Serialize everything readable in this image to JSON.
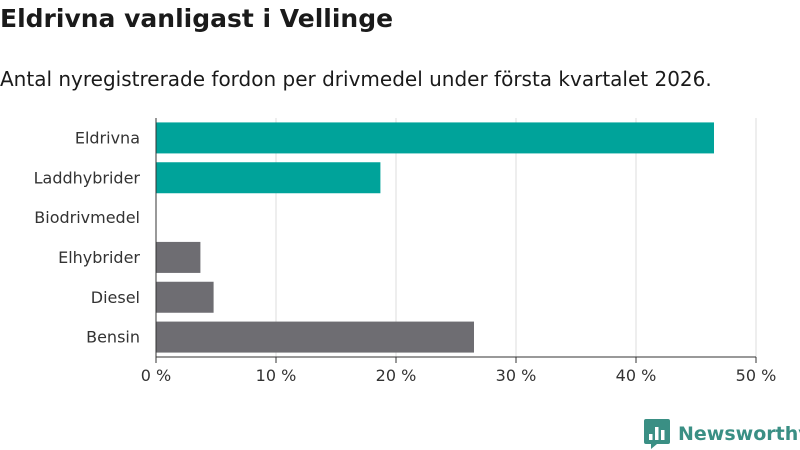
{
  "title": "Eldrivna vanligast i Vellinge",
  "subtitle": "Antal nyregistrerade fordon per drivmedel under första kvartalet 2026.",
  "brand": "Newsworthy",
  "colors": {
    "highlight": "#00a39a",
    "default": "#6e6d72",
    "grid": "#dcdcdc",
    "axis": "#333333",
    "brand": "#3a8f84"
  },
  "chart_data": {
    "type": "bar",
    "orientation": "horizontal",
    "categories": [
      "Eldrivna",
      "Laddhybrider",
      "Biodrivmedel",
      "Elhybrider",
      "Diesel",
      "Bensin"
    ],
    "values": [
      46.5,
      18.7,
      0,
      3.7,
      4.8,
      26.5
    ],
    "highlighted": [
      true,
      true,
      true,
      false,
      false,
      false
    ],
    "xlim": [
      0,
      50
    ],
    "xticks": [
      0,
      10,
      20,
      30,
      40,
      50
    ],
    "xtick_labels": [
      "0 %",
      "10 %",
      "20 %",
      "30 %",
      "40 %",
      "50 %"
    ],
    "xlabel": "",
    "ylabel": "",
    "grid": true
  }
}
